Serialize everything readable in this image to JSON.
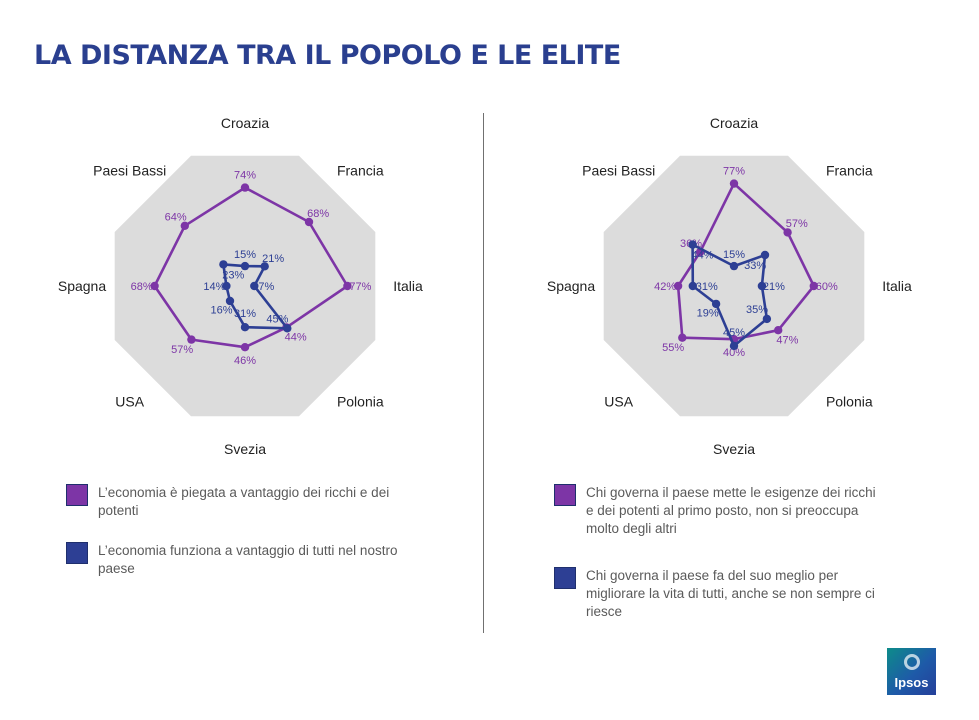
{
  "title": "LA DISTANZA TRA IL POPOLO E LE ELITE",
  "colors": {
    "purple": "#7d35a6",
    "blue": "#2d3f94",
    "octagon": "#dcdcdc",
    "label": "#222222",
    "title": "#2a3f8f"
  },
  "logo": {
    "text": "Ipsos"
  },
  "chart_data": [
    {
      "type": "radar",
      "categories": [
        "Croazia",
        "Francia",
        "Italia",
        "Polonia",
        "Svezia",
        "USA",
        "Spagna",
        "Paesi Bassi"
      ],
      "series": [
        {
          "name": "L’economia è piegata a vantaggio dei ricchi e dei potenti",
          "values": [
            74,
            68,
            77,
            44,
            46,
            57,
            68,
            64
          ],
          "labels": [
            "74%",
            "68%",
            "77%",
            "44%",
            "46%",
            "57%",
            "68%",
            "64%"
          ],
          "color": "#7d35a6"
        },
        {
          "name": "L’economia funziona a vantaggio di tutti nel nostro paese",
          "values": [
            15,
            21,
            7,
            45,
            31,
            16,
            14,
            23
          ],
          "labels": [
            "15%",
            "21%",
            "7%",
            "45%",
            "31%",
            "16%",
            "14%",
            "23%"
          ],
          "color": "#2d3f94"
        }
      ],
      "rlim": [
        0,
        100
      ]
    },
    {
      "type": "radar",
      "categories": [
        "Croazia",
        "Francia",
        "Italia",
        "Polonia",
        "Svezia",
        "USA",
        "Spagna",
        "Paesi Bassi"
      ],
      "series": [
        {
          "name": "Chi governa il paese mette le esigenze dei ricchi e dei potenti al primo posto, non si preoccupa molto degli altri",
          "values": [
            77,
            57,
            60,
            47,
            40,
            55,
            42,
            36
          ],
          "labels": [
            "77%",
            "57%",
            "60%",
            "47%",
            "40%",
            "55%",
            "42%",
            "36%"
          ],
          "color": "#7d35a6"
        },
        {
          "name": "Chi governa il paese fa del suo meglio per migliorare la vita di tutti, anche se non sempre ci riesce",
          "values": [
            15,
            33,
            21,
            35,
            45,
            19,
            31,
            44
          ],
          "labels": [
            "15%",
            "33%",
            "21%",
            "35%",
            "45%",
            "19%",
            "31%",
            "44%"
          ],
          "color": "#2d3f94"
        }
      ],
      "rlim": [
        0,
        100
      ]
    }
  ]
}
